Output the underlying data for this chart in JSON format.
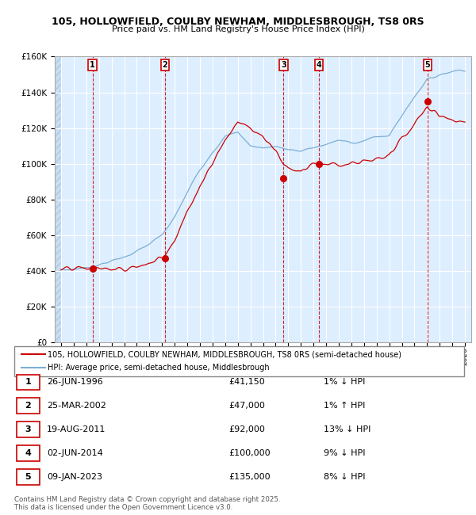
{
  "title1": "105, HOLLOWFIELD, COULBY NEWHAM, MIDDLESBROUGH, TS8 0RS",
  "title2": "Price paid vs. HM Land Registry's House Price Index (HPI)",
  "legend_line1": "105, HOLLOWFIELD, COULBY NEWHAM, MIDDLESBROUGH, TS8 0RS (semi-detached house)",
  "legend_line2": "HPI: Average price, semi-detached house, Middlesbrough",
  "footer1": "Contains HM Land Registry data © Crown copyright and database right 2025.",
  "footer2": "This data is licensed under the Open Government Licence v3.0.",
  "sale_dates_x": [
    1996.49,
    2002.23,
    2011.63,
    2014.42,
    2023.03
  ],
  "sale_prices_y": [
    41150,
    47000,
    92000,
    100000,
    135000
  ],
  "sale_labels": [
    "1",
    "2",
    "3",
    "4",
    "5"
  ],
  "sale_table": [
    [
      "1",
      "26-JUN-1996",
      "£41,150",
      "1% ↓ HPI"
    ],
    [
      "2",
      "25-MAR-2002",
      "£47,000",
      "1% ↑ HPI"
    ],
    [
      "3",
      "19-AUG-2011",
      "£92,000",
      "13% ↓ HPI"
    ],
    [
      "4",
      "02-JUN-2014",
      "£100,000",
      "9% ↓ HPI"
    ],
    [
      "5",
      "09-JAN-2023",
      "£135,000",
      "8% ↓ HPI"
    ]
  ],
  "red_line_color": "#cc0000",
  "blue_line_color": "#7bafd4",
  "bg_color": "#ddeeff",
  "grid_color": "#ffffff",
  "dashed_line_color": "#cc0000",
  "sale_dot_color": "#cc0000",
  "label_box_color": "#cc0000",
  "ylim": [
    0,
    160000
  ],
  "yticks": [
    0,
    20000,
    40000,
    60000,
    80000,
    100000,
    120000,
    140000,
    160000
  ],
  "xmin": 1993.5,
  "xmax": 2026.5,
  "hpi_anchors_x": [
    1994,
    1995,
    1996,
    1997,
    1998,
    1999,
    2000,
    2001,
    2002,
    2003,
    2004,
    2005,
    2006,
    2007,
    2008,
    2009,
    2010,
    2011,
    2012,
    2013,
    2014,
    2015,
    2016,
    2017,
    2018,
    2019,
    2020,
    2021,
    2022,
    2023,
    2024,
    2025,
    2026
  ],
  "hpi_anchors_y": [
    40500,
    41000,
    42000,
    43500,
    45500,
    48000,
    51000,
    55000,
    60000,
    70000,
    84000,
    97000,
    107000,
    115000,
    118000,
    110000,
    109000,
    110000,
    108000,
    107000,
    109000,
    111000,
    113000,
    112000,
    113000,
    115000,
    116000,
    127000,
    138000,
    147000,
    150000,
    152000,
    153000
  ],
  "prop_anchors_x": [
    1994,
    1995,
    1996,
    1997,
    1998,
    1999,
    2000,
    2001,
    2002,
    2003,
    2004,
    2005,
    2006,
    2007,
    2008,
    2009,
    2010,
    2011,
    2012,
    2013,
    2014,
    2015,
    2016,
    2017,
    2018,
    2019,
    2020,
    2021,
    2022,
    2023,
    2024,
    2025,
    2026
  ],
  "prop_anchors_y": [
    40500,
    41000,
    41500,
    42000,
    40500,
    41000,
    42500,
    44500,
    47500,
    58000,
    73000,
    88000,
    101000,
    113000,
    124000,
    120000,
    115000,
    107000,
    98000,
    96000,
    101000,
    100000,
    99000,
    100000,
    101000,
    102000,
    104000,
    114000,
    122000,
    132000,
    127000,
    125000,
    124000
  ]
}
